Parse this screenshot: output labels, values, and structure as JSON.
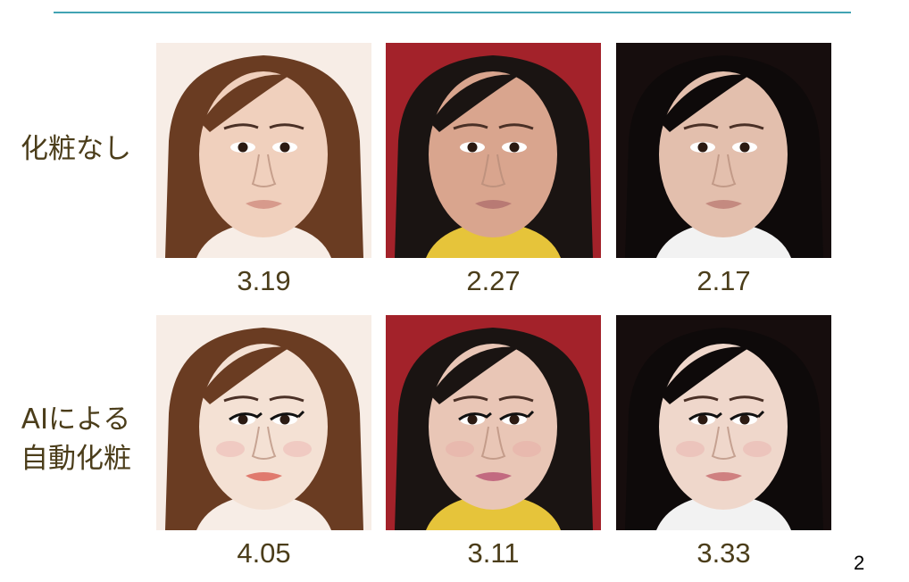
{
  "rows": [
    {
      "label": "化粧なし",
      "items": [
        {
          "score": "3.19",
          "skin": "#f0d0bd",
          "bg": "#f7ede6",
          "hair": "#6a3c22",
          "lip": "#d79a8c",
          "top": "#f7ede6",
          "makeup": false
        },
        {
          "score": "2.27",
          "skin": "#d9a58e",
          "bg": "#a3222a",
          "hair": "#1a1412",
          "lip": "#b87a74",
          "top": "#e6c43a",
          "makeup": false
        },
        {
          "score": "2.17",
          "skin": "#e3bfad",
          "bg": "#160d0d",
          "hair": "#0e0a0a",
          "lip": "#c48a80",
          "top": "#f2f2f2",
          "makeup": false
        }
      ]
    },
    {
      "label": "AIによる\n自動化粧",
      "items": [
        {
          "score": "4.05",
          "skin": "#f4e1d4",
          "bg": "#f7ede6",
          "hair": "#6a3c22",
          "lip": "#e07a6e",
          "top": "#f7ede6",
          "makeup": true
        },
        {
          "score": "3.11",
          "skin": "#e9c6b6",
          "bg": "#a3222a",
          "hair": "#1a1412",
          "lip": "#c26a80",
          "top": "#e6c43a",
          "makeup": true
        },
        {
          "score": "3.33",
          "skin": "#efd7cb",
          "bg": "#160d0d",
          "hair": "#0e0a0a",
          "lip": "#cf8080",
          "top": "#f2f2f2",
          "makeup": true
        }
      ]
    }
  ],
  "page_number": "2"
}
